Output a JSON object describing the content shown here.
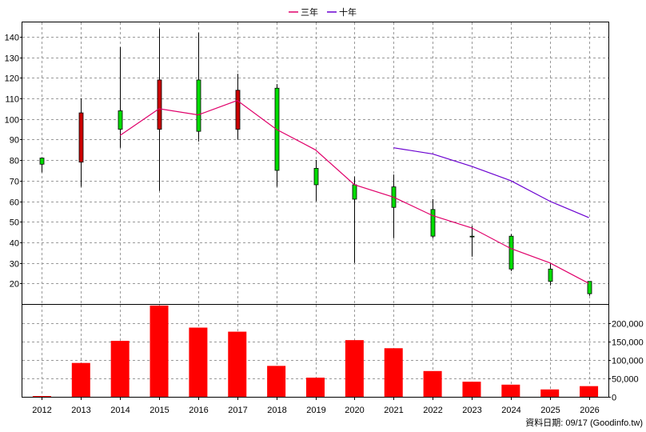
{
  "chart_data": {
    "type": "candlestick",
    "legend": {
      "placement": "top-center",
      "items": [
        {
          "label": "三年",
          "color": "#e0006a"
        },
        {
          "label": "十年",
          "color": "#6a00d0"
        }
      ]
    },
    "x_labels": [
      "2012",
      "2013",
      "2014",
      "2015",
      "2016",
      "2017",
      "2018",
      "2019",
      "2020",
      "2021",
      "2022",
      "2023",
      "2024",
      "2025",
      "2026"
    ],
    "price": {
      "ylim": [
        10,
        147
      ],
      "yticks": [
        20,
        30,
        40,
        50,
        60,
        70,
        80,
        90,
        100,
        110,
        120,
        130,
        140
      ],
      "candles": [
        {
          "year": "2012",
          "open": 78,
          "close": 81,
          "high": 81,
          "low": 74,
          "color": "green"
        },
        {
          "year": "2013",
          "open": 103,
          "close": 79,
          "high": 110,
          "low": 67,
          "color": "red"
        },
        {
          "year": "2014",
          "open": 95,
          "close": 104,
          "high": 135,
          "low": 86,
          "color": "green"
        },
        {
          "year": "2015",
          "open": 119,
          "close": 95,
          "high": 144,
          "low": 65,
          "color": "red"
        },
        {
          "year": "2016",
          "open": 94,
          "close": 119,
          "high": 142,
          "low": 89,
          "color": "green"
        },
        {
          "year": "2017",
          "open": 114,
          "close": 95,
          "high": 122,
          "low": 90,
          "color": "red"
        },
        {
          "year": "2018",
          "open": 75,
          "close": 115,
          "high": 117,
          "low": 67,
          "color": "green"
        },
        {
          "year": "2019",
          "open": 68,
          "close": 76,
          "high": 80,
          "low": 60,
          "color": "green"
        },
        {
          "year": "2020",
          "open": 61,
          "close": 68,
          "high": 72,
          "low": 30,
          "color": "green"
        },
        {
          "year": "2021",
          "open": 57,
          "close": 67,
          "high": 73,
          "low": 42,
          "color": "green"
        },
        {
          "year": "2022",
          "open": 43,
          "close": 56,
          "high": 61,
          "low": 42,
          "color": "green"
        },
        {
          "year": "2023",
          "open": 43,
          "close": 43,
          "high": 48,
          "low": 33,
          "color": "green"
        },
        {
          "year": "2024",
          "open": 27,
          "close": 43,
          "high": 44,
          "low": 26,
          "color": "green"
        },
        {
          "year": "2025",
          "open": 21,
          "close": 27,
          "high": 30,
          "low": 19,
          "color": "green"
        },
        {
          "year": "2026",
          "open": 15,
          "close": 21,
          "high": 21,
          "low": 14,
          "color": "green"
        }
      ],
      "series": [
        {
          "name": "三年",
          "color": "#e0006a",
          "x": [
            "2014",
            "2015",
            "2016",
            "2017",
            "2018",
            "2019",
            "2020",
            "2021",
            "2022",
            "2023",
            "2024",
            "2025",
            "2026"
          ],
          "values": [
            92,
            105,
            102,
            109,
            95,
            85,
            68,
            62,
            53,
            47,
            37,
            30,
            20
          ]
        },
        {
          "name": "十年",
          "color": "#6a00d0",
          "x": [
            "2021",
            "2022",
            "2023",
            "2024",
            "2025",
            "2026"
          ],
          "values": [
            86,
            83,
            77,
            70,
            60,
            52
          ]
        }
      ]
    },
    "volume": {
      "ylim": [
        0,
        250000
      ],
      "yticks": [
        0,
        50000,
        100000,
        150000,
        200000
      ],
      "ytick_labels": [
        "0",
        "50,000",
        "100,000",
        "150,000",
        "200,000"
      ],
      "bar_color": "#ff0000",
      "values": [
        2000,
        92000,
        152000,
        248000,
        188000,
        177000,
        84000,
        52000,
        154000,
        132000,
        70000,
        41000,
        33000,
        20000,
        29000
      ]
    },
    "grid": true
  },
  "footer": {
    "source": "資料日期: 09/17  (Goodinfo.tw)"
  }
}
